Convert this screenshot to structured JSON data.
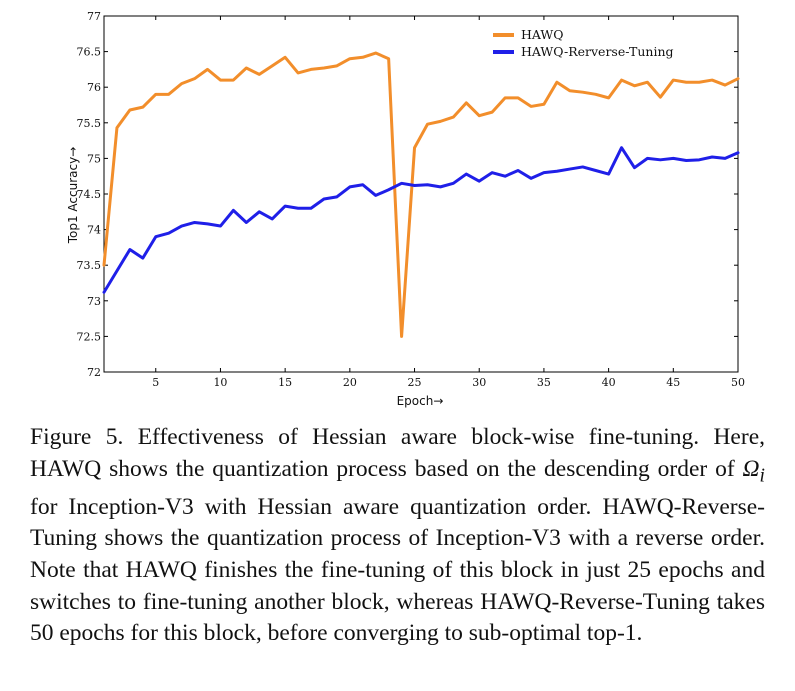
{
  "chart_data": {
    "type": "line",
    "title": "",
    "xlabel": "Epoch→",
    "ylabel": "Top1 Accuracy→",
    "xlim": [
      1,
      50
    ],
    "ylim": [
      72,
      77
    ],
    "xticks": [
      5,
      10,
      15,
      20,
      25,
      30,
      35,
      40,
      45,
      50
    ],
    "yticks": [
      72,
      72.5,
      73,
      73.5,
      74,
      74.5,
      75,
      75.5,
      76,
      76.5,
      77
    ],
    "ytick_labels": [
      "72",
      "72.5",
      "73",
      "73.5",
      "74",
      "74.5",
      "75",
      "75.5",
      "76",
      "76.5",
      "77"
    ],
    "legend_position": "top-right",
    "grid": false,
    "series": [
      {
        "name": "HAWQ",
        "color": "#f28e2b",
        "x": [
          1,
          2,
          3,
          4,
          5,
          6,
          7,
          8,
          9,
          10,
          11,
          12,
          13,
          14,
          15,
          16,
          17,
          18,
          19,
          20,
          21,
          22,
          23,
          24,
          25,
          26,
          27,
          28,
          29,
          30,
          31,
          32,
          33,
          34,
          35,
          36,
          37,
          38,
          39,
          40,
          41,
          42,
          43,
          44,
          45,
          46,
          47,
          48,
          49,
          50
        ],
        "values": [
          73.5,
          75.43,
          75.68,
          75.72,
          75.9,
          75.9,
          76.05,
          76.12,
          76.25,
          76.1,
          76.1,
          76.27,
          76.18,
          76.3,
          76.42,
          76.2,
          76.25,
          76.27,
          76.3,
          76.4,
          76.42,
          76.48,
          76.4,
          72.5,
          75.15,
          75.48,
          75.52,
          75.58,
          75.78,
          75.6,
          75.65,
          75.85,
          75.85,
          75.73,
          75.76,
          76.07,
          75.95,
          75.93,
          75.9,
          75.85,
          76.1,
          76.02,
          76.07,
          75.86,
          76.1,
          76.07,
          76.07,
          76.1,
          76.03,
          76.12
        ]
      },
      {
        "name": "HAWQ-Rerverse-Tuning",
        "color": "#1f1fe8",
        "x": [
          1,
          2,
          3,
          4,
          5,
          6,
          7,
          8,
          9,
          10,
          11,
          12,
          13,
          14,
          15,
          16,
          17,
          18,
          19,
          20,
          21,
          22,
          23,
          24,
          25,
          26,
          27,
          28,
          29,
          30,
          31,
          32,
          33,
          34,
          35,
          36,
          37,
          38,
          39,
          40,
          41,
          42,
          43,
          44,
          45,
          46,
          47,
          48,
          49,
          50
        ],
        "values": [
          73.12,
          73.42,
          73.72,
          73.6,
          73.9,
          73.95,
          74.05,
          74.1,
          74.08,
          74.05,
          74.27,
          74.1,
          74.25,
          74.15,
          74.33,
          74.3,
          74.3,
          74.43,
          74.46,
          74.6,
          74.63,
          74.48,
          74.56,
          74.65,
          74.62,
          74.63,
          74.6,
          74.65,
          74.78,
          74.68,
          74.8,
          74.75,
          74.83,
          74.72,
          74.8,
          74.82,
          74.85,
          74.88,
          74.83,
          74.78,
          75.15,
          74.87,
          75.0,
          74.98,
          75.0,
          74.97,
          74.98,
          75.02,
          75.0,
          75.08
        ]
      }
    ]
  },
  "caption": "Figure 5.  Effectiveness of Hessian aware block-wise fine-tuning. Here, HAWQ shows the quantization process based on the descending order of Ωi for Inception-V3 with Hessian aware quantization order. HAWQ-Reverse-Tuning shows the quantization process of Inception-V3 with a reverse order. Note that HAWQ finishes the fine-tuning of this block in just 25 epochs and switches to fine-tuning another block, whereas HAWQ-Reverse-Tuning takes 50 epochs for this block, before converging to sub-optimal top-1.",
  "caption_parts": {
    "before": "Figure 5.  Effectiveness of Hessian aware block-wise fine-tuning. Here, HAWQ shows the quantization process based on the descending order of ",
    "omega": "Ω",
    "subscript": "i",
    "after": " for Inception-V3 with Hessian aware quantization order. HAWQ-Reverse-Tuning shows the quantization process of Inception-V3 with a reverse order. Note that HAWQ finishes the fine-tuning of this block in just 25 epochs and switches to fine-tuning another block, whereas HAWQ-Reverse-Tuning takes 50 epochs for this block, before converging to sub-optimal top-1."
  }
}
